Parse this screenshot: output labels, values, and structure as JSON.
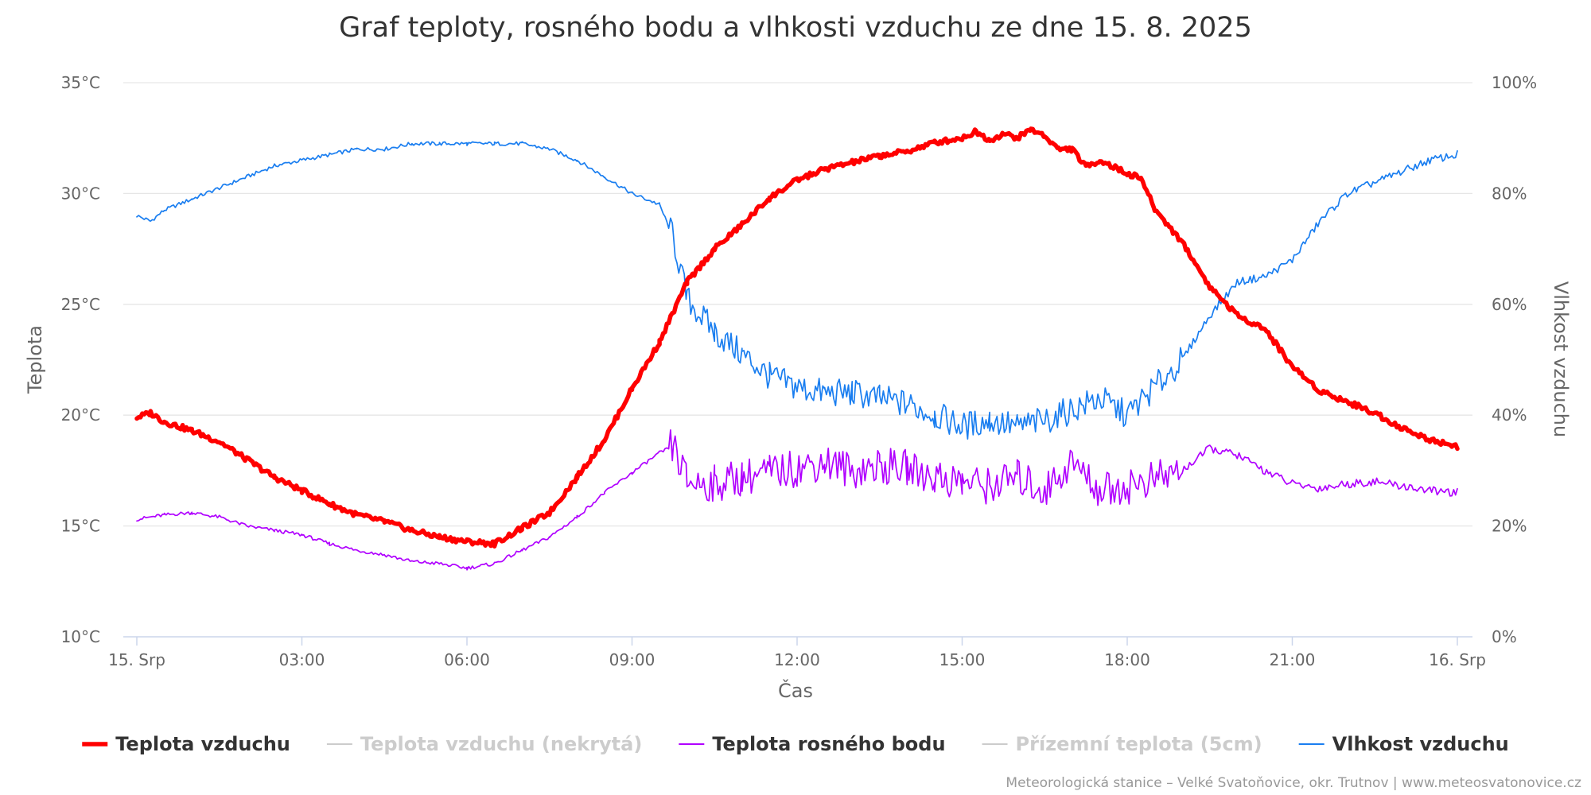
{
  "chart_data": {
    "type": "line",
    "title": "Graf teploty, rosného bodu a vlhkosti vzduchu ze dne 15. 8. 2025",
    "xlabel": "Čas",
    "ylabel_left": "Teplota",
    "ylabel_right": "Vlhkost vzduchu",
    "x_hours_range": [
      0,
      24
    ],
    "x_ticks": [
      {
        "hour": 0,
        "label": "15. Srp"
      },
      {
        "hour": 3,
        "label": "03:00"
      },
      {
        "hour": 6,
        "label": "06:00"
      },
      {
        "hour": 9,
        "label": "09:00"
      },
      {
        "hour": 12,
        "label": "12:00"
      },
      {
        "hour": 15,
        "label": "15:00"
      },
      {
        "hour": 18,
        "label": "18:00"
      },
      {
        "hour": 21,
        "label": "21:00"
      },
      {
        "hour": 24,
        "label": "16. Srp"
      }
    ],
    "y_left": {
      "min": 10,
      "max": 35,
      "ticks": [
        10,
        15,
        20,
        25,
        30,
        35
      ],
      "unit": "°C"
    },
    "y_right": {
      "min": 0,
      "max": 100,
      "ticks": [
        0,
        20,
        40,
        60,
        80,
        100
      ],
      "unit": "%"
    },
    "grid": true,
    "legend_position": "bottom",
    "series": [
      {
        "key": "temp",
        "name": "Teplota vzduchu",
        "axis": "left",
        "color": "#ff0000",
        "visible": true,
        "x": [
          0,
          0.25,
          0.5,
          1,
          1.5,
          2,
          2.5,
          3,
          3.5,
          4,
          4.5,
          5,
          5.5,
          6,
          6.5,
          7,
          7.5,
          8,
          8.5,
          9,
          9.5,
          10,
          10.5,
          11,
          11.5,
          12,
          12.5,
          13,
          13.5,
          14,
          14.5,
          15,
          15.25,
          15.5,
          15.75,
          16,
          16.25,
          16.5,
          16.75,
          17,
          17.25,
          17.5,
          17.75,
          18,
          18.25,
          18.5,
          19,
          19.5,
          20,
          20.5,
          21,
          21.5,
          22,
          22.5,
          23,
          23.5,
          24
        ],
        "values": [
          19.9,
          20.1,
          19.7,
          19.3,
          18.8,
          18.0,
          17.2,
          16.6,
          16.0,
          15.5,
          15.2,
          14.8,
          14.5,
          14.3,
          14.2,
          14.9,
          15.6,
          17.2,
          18.9,
          21.2,
          23.3,
          26.0,
          27.5,
          28.6,
          29.8,
          30.6,
          31.1,
          31.4,
          31.7,
          31.9,
          32.3,
          32.5,
          32.8,
          32.4,
          32.7,
          32.5,
          32.9,
          32.6,
          32.0,
          32.0,
          31.2,
          31.5,
          31.2,
          30.9,
          30.7,
          29.3,
          27.8,
          25.8,
          24.5,
          23.9,
          22.2,
          21.1,
          20.6,
          20.1,
          19.4,
          18.9,
          18.6
        ]
      },
      {
        "key": "temp_uncovered",
        "name": "Teplota vzduchu (nekrytá)",
        "axis": "left",
        "color": "#cccccc",
        "visible": false
      },
      {
        "key": "dew",
        "name": "Teplota rosného bodu",
        "axis": "left",
        "color": "#b000ff",
        "visible": true,
        "x": [
          0,
          0.5,
          1,
          1.5,
          2,
          2.5,
          3,
          3.5,
          4,
          4.5,
          5,
          5.5,
          6,
          6.25,
          6.5,
          7,
          7.5,
          8,
          8.5,
          9,
          9.5,
          9.75,
          10,
          10.5,
          11,
          11.5,
          12,
          12.5,
          13,
          13.5,
          14,
          14.5,
          15,
          15.5,
          16,
          16.5,
          17,
          17.5,
          18,
          18.5,
          19,
          19.5,
          20,
          20.5,
          21,
          21.5,
          22,
          22.5,
          23,
          23.5,
          24
        ],
        "values": [
          15.3,
          15.5,
          15.6,
          15.4,
          15.0,
          14.8,
          14.6,
          14.2,
          13.9,
          13.7,
          13.4,
          13.3,
          13.1,
          13.2,
          13.3,
          13.9,
          14.5,
          15.4,
          16.5,
          17.4,
          18.3,
          18.6,
          17.0,
          16.9,
          17.2,
          17.4,
          17.6,
          17.9,
          17.5,
          17.7,
          17.6,
          17.2,
          17.0,
          16.8,
          17.2,
          16.6,
          17.9,
          16.6,
          16.8,
          17.1,
          17.5,
          18.5,
          18.2,
          17.5,
          16.9,
          16.7,
          16.9,
          17.0,
          16.8,
          16.6,
          16.5
        ]
      },
      {
        "key": "ground",
        "name": "Přízemní teplota (5cm)",
        "axis": "left",
        "color": "#cccccc",
        "visible": false
      },
      {
        "key": "humidity",
        "name": "Vlhkost vzduchu",
        "axis": "right",
        "color": "#1a7ef0",
        "visible": true,
        "x": [
          0,
          0.25,
          0.5,
          1,
          1.5,
          2,
          2.5,
          3,
          3.5,
          4,
          4.5,
          5,
          5.5,
          6,
          6.5,
          7,
          7.5,
          8,
          8.5,
          9,
          9.5,
          9.75,
          10,
          10.5,
          11,
          11.5,
          12,
          12.5,
          13,
          13.5,
          14,
          14.5,
          15,
          15.5,
          16,
          16.5,
          17,
          17.5,
          18,
          18.5,
          19,
          19.5,
          20,
          20.5,
          21,
          21.5,
          22,
          22.5,
          23,
          23.5,
          24
        ],
        "values": [
          76,
          75,
          77,
          79,
          81,
          83,
          85,
          86,
          87,
          88,
          88,
          89,
          89,
          89,
          89,
          89,
          88,
          86,
          83,
          80,
          78,
          72,
          61,
          55,
          51,
          47,
          45,
          44,
          44,
          43,
          42,
          40,
          38,
          39,
          38,
          39,
          41,
          43,
          40,
          45,
          50,
          58,
          64,
          65,
          68,
          75,
          80,
          82,
          84,
          86,
          87
        ]
      }
    ],
    "credits": "Meteorologická stanice – Velké Svatoňovice, okr. Trutnov | www.meteosvatonovice.cz"
  }
}
